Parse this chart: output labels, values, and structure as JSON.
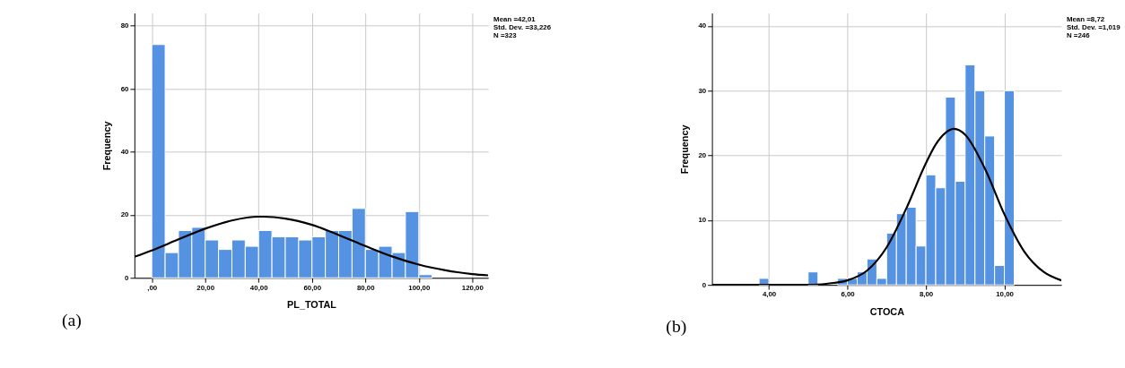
{
  "chart_data": [
    {
      "type": "histogram",
      "xlabel": "PL_TOTAL",
      "ylabel": "Frequency",
      "color": "#5592e2",
      "grid": true,
      "bins": [
        0,
        5,
        10,
        15,
        20,
        25,
        30,
        35,
        40,
        45,
        50,
        55,
        60,
        65,
        70,
        75,
        80,
        85,
        90,
        95,
        100,
        105
      ],
      "values": [
        74,
        8,
        15,
        16,
        12,
        9,
        12,
        10,
        15,
        13,
        13,
        12,
        13,
        15,
        15,
        22,
        9,
        10,
        8,
        21,
        1
      ],
      "series": [
        {
          "type": "line",
          "color": "#000000",
          "x": [
            -6.5,
            0,
            10,
            20,
            30,
            40,
            42,
            50,
            60,
            70,
            80,
            90,
            100,
            110,
            120,
            126
          ],
          "values": [
            6.7,
            8.7,
            12.2,
            15.6,
            18.2,
            19.4,
            19.4,
            18.8,
            16.8,
            13.6,
            10.1,
            6.8,
            4.2,
            2.4,
            1.2,
            0.8
          ]
        }
      ],
      "xlim": [
        -6.5,
        126
      ],
      "ylim": [
        0,
        84
      ],
      "xticks": [
        {
          "value": 0,
          "label": ",00"
        },
        {
          "value": 20,
          "label": "20,00"
        },
        {
          "value": 40,
          "label": "40,00"
        },
        {
          "value": 60,
          "label": "60,00"
        },
        {
          "value": 80,
          "label": "80,00"
        },
        {
          "value": 100,
          "label": "100,00"
        },
        {
          "value": 120,
          "label": "120,00"
        }
      ],
      "yticks": [
        0,
        20,
        40,
        60,
        80
      ],
      "annotations": [
        "Mean =42,01",
        "Std. Dev. =33,226",
        "N =323",
        "(a)"
      ]
    },
    {
      "type": "histogram",
      "xlabel": "CTOCA",
      "ylabel": "Frequency",
      "color": "#5592e2",
      "grid": true,
      "bins": [
        3.75,
        4,
        4.25,
        4.5,
        4.75,
        5,
        5.25,
        5.5,
        5.75,
        6,
        6.25,
        6.5,
        6.75,
        7,
        7.25,
        7.5,
        7.75,
        8,
        8.25,
        8.5,
        8.75,
        9,
        9.25,
        9.5,
        9.75,
        10,
        10.25
      ],
      "values": [
        1,
        0,
        0,
        0,
        0,
        2,
        0,
        0,
        1,
        1,
        2,
        4,
        1,
        8,
        11,
        12,
        6,
        17,
        15,
        29,
        16,
        34,
        30,
        23,
        3,
        30
      ],
      "series": [
        {
          "type": "line",
          "color": "#000000",
          "x": [
            2.55,
            4,
            5,
            5.5,
            6,
            6.5,
            7,
            7.5,
            8,
            8.25,
            8.5,
            8.72,
            9,
            9.5,
            10,
            10.5,
            11,
            11.45
          ],
          "values": [
            0,
            0,
            0,
            0.2,
            0.7,
            2.2,
            5.8,
            11.8,
            18.8,
            21.7,
            23.5,
            24.1,
            23.2,
            18,
            10.9,
            5.2,
            2,
            0.7
          ]
        }
      ],
      "xlim": [
        2.55,
        11.45
      ],
      "ylim": [
        0,
        42
      ],
      "xticks": [
        {
          "value": 4,
          "label": "4,00"
        },
        {
          "value": 6,
          "label": "6,00"
        },
        {
          "value": 8,
          "label": "8,00"
        },
        {
          "value": 10,
          "label": "10,00"
        }
      ],
      "yticks": [
        0,
        10,
        20,
        30,
        40
      ],
      "annotations": [
        "Mean =8,72",
        "Std. Dev. =1,019",
        "N =246",
        "(b)"
      ]
    }
  ]
}
